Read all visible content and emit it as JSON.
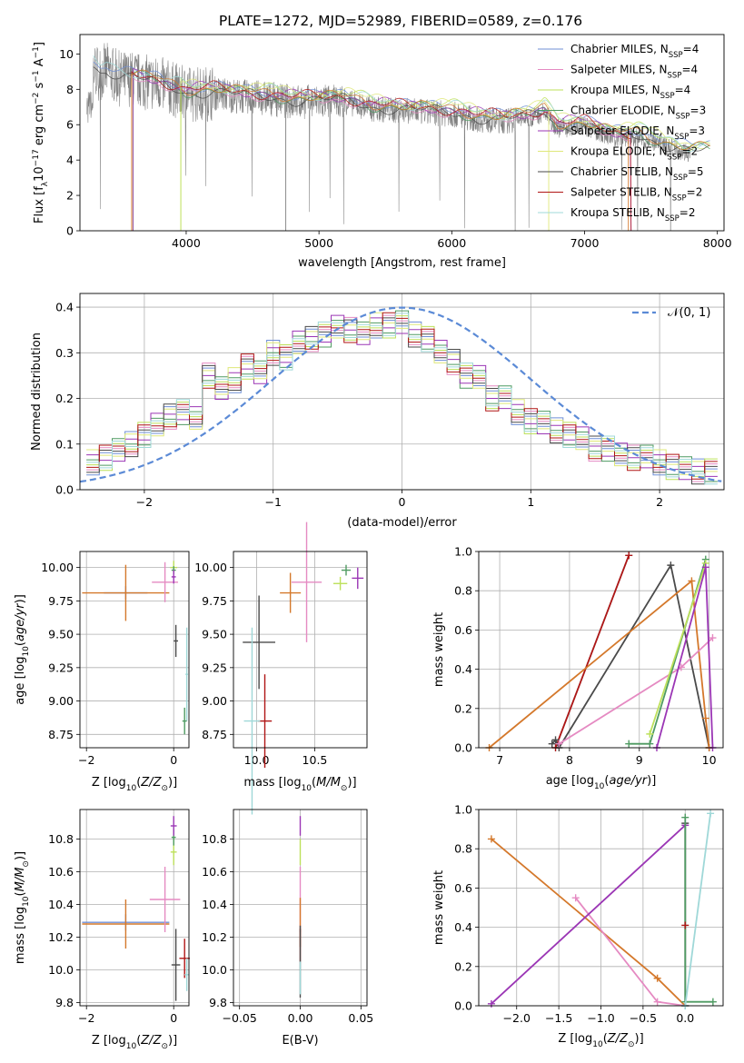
{
  "figure_title": "PLATE=1272, MJD=52989, FIBERID=0589, z=0.176",
  "series_colors": {
    "chabrier_miles": "#6f8fd6",
    "salpeter_miles": "#e58ac2",
    "kroupa_miles": "#bde05a",
    "chabrier_elodie": "#4f9b62",
    "salpeter_elodie": "#9b36b5",
    "kroupa_elodie": "#dfe87a",
    "chabrier_stelib": "#4a4a4a",
    "salpeter_stelib": "#b01515",
    "kroupa_stelib": "#9fd8d8",
    "combined_curve": "#d4782b",
    "data_spectrum": "#808080",
    "normal_curve": "#5b8ad6"
  },
  "chart_data": [
    {
      "id": "spectrum",
      "type": "line",
      "title": "PLATE=1272, MJD=52989, FIBERID=0589, z=0.176",
      "xlabel": "wavelength [Angstrom, rest frame]",
      "ylabel": "Flux [f_λ 10^-17 erg cm^-2 s^-1 A^-1]",
      "xlim": [
        3200,
        8050
      ],
      "ylim": [
        0,
        11.1
      ],
      "xticks": [
        4000,
        5000,
        6000,
        7000,
        8000
      ],
      "yticks": [
        0,
        2,
        4,
        6,
        8,
        10
      ],
      "grid": false,
      "legend_position": "top-right",
      "legend": [
        {
          "key": "chabrier_miles",
          "label": "Chabrier MILES, N",
          "sub": "SSP",
          "suffix": "=4"
        },
        {
          "key": "salpeter_miles",
          "label": "Salpeter MILES, N",
          "sub": "SSP",
          "suffix": "=4"
        },
        {
          "key": "kroupa_miles",
          "label": "Kroupa MILES, N",
          "sub": "SSP",
          "suffix": "=4"
        },
        {
          "key": "chabrier_elodie",
          "label": "Chabrier ELODIE, N",
          "sub": "SSP",
          "suffix": "=3"
        },
        {
          "key": "salpeter_elodie",
          "label": "Salpeter ELODIE, N",
          "sub": "SSP",
          "suffix": "=3"
        },
        {
          "key": "kroupa_elodie",
          "label": "Kroupa ELODIE, N",
          "sub": "SSP",
          "suffix": "=2"
        },
        {
          "key": "chabrier_stelib",
          "label": "Chabrier STELIB, N",
          "sub": "SSP",
          "suffix": "=5"
        },
        {
          "key": "salpeter_stelib",
          "label": "Salpeter STELIB, N",
          "sub": "SSP",
          "suffix": "=2"
        },
        {
          "key": "kroupa_stelib",
          "label": "Kroupa STELIB, N",
          "sub": "SSP",
          "suffix": "=2"
        }
      ],
      "data_range": [
        3250,
        7800
      ],
      "model_envelope": {
        "x": [
          3250,
          3300,
          3350,
          3400,
          3500,
          3600,
          3700,
          3800,
          3900,
          4000,
          4200,
          4400,
          4600,
          4800,
          5000,
          5200,
          5400,
          5600,
          5800,
          6000,
          6200,
          6400,
          6600,
          6700,
          6800,
          7000,
          7200,
          7400,
          7600,
          7800
        ],
        "y": [
          6.2,
          9.5,
          9.2,
          9.4,
          8.9,
          8.9,
          8.7,
          8.6,
          8.3,
          8.0,
          8.1,
          7.9,
          7.8,
          7.6,
          7.6,
          7.6,
          7.2,
          7.1,
          7.0,
          6.9,
          6.6,
          6.5,
          6.7,
          7.0,
          6.1,
          6.2,
          5.6,
          5.6,
          5.1,
          4.7
        ]
      }
    },
    {
      "id": "residuals",
      "type": "line",
      "xlabel": "(data-model)/error",
      "ylabel": "Normed distribution",
      "xlim": [
        -2.5,
        2.5
      ],
      "ylim": [
        0,
        0.43
      ],
      "xticks": [
        -2,
        -1,
        0,
        1,
        2
      ],
      "yticks": [
        0.0,
        0.1,
        0.2,
        0.3,
        0.4
      ],
      "grid": true,
      "legend_position": "top-right",
      "legend": [
        {
          "label": "𝒩(0, 1)",
          "style": "dashed"
        }
      ],
      "bins": [
        -2.4,
        -2.3,
        -2.2,
        -2.1,
        -2.0,
        -1.9,
        -1.8,
        -1.7,
        -1.6,
        -1.5,
        -1.4,
        -1.3,
        -1.2,
        -1.1,
        -1.0,
        -0.9,
        -0.8,
        -0.7,
        -0.6,
        -0.5,
        -0.4,
        -0.3,
        -0.2,
        -0.1,
        0.0,
        0.1,
        0.2,
        0.3,
        0.4,
        0.5,
        0.6,
        0.7,
        0.8,
        0.9,
        1.0,
        1.1,
        1.2,
        1.3,
        1.4,
        1.5,
        1.6,
        1.7,
        1.8,
        1.9,
        2.0,
        2.1,
        2.2,
        2.3,
        2.4
      ],
      "histogram_mean": [
        0.06,
        0.07,
        0.09,
        0.1,
        0.12,
        0.14,
        0.16,
        0.17,
        0.16,
        0.25,
        0.22,
        0.24,
        0.27,
        0.26,
        0.3,
        0.29,
        0.32,
        0.33,
        0.34,
        0.36,
        0.35,
        0.34,
        0.36,
        0.36,
        0.37,
        0.34,
        0.33,
        0.3,
        0.28,
        0.25,
        0.25,
        0.2,
        0.2,
        0.17,
        0.15,
        0.15,
        0.13,
        0.12,
        0.11,
        0.09,
        0.09,
        0.08,
        0.07,
        0.07,
        0.06,
        0.05,
        0.05,
        0.04,
        0.04
      ],
      "normal_curve": {
        "mu": 0,
        "sigma": 1
      }
    },
    {
      "id": "age_vs_Z",
      "type": "scatter",
      "xlabel": "Z [log10(Z/Z⊙)]",
      "ylabel": "age [log10(age/yr)]",
      "xlim": [
        -2.15,
        0.35
      ],
      "ylim": [
        8.65,
        10.12
      ],
      "xticks": [
        -2,
        0
      ],
      "yticks": [
        8.75,
        9.0,
        9.25,
        9.5,
        9.75,
        10.0
      ],
      "grid": true,
      "points": [
        {
          "key": "chabrier_miles",
          "x": -1.1,
          "y": 9.81,
          "xerr": 0.5,
          "yerr": 0.05
        },
        {
          "key": "combined_curve",
          "x": -1.1,
          "y": 9.81,
          "xerr": 1.0,
          "yerr": 0.21
        },
        {
          "key": "salpeter_miles",
          "x": -0.2,
          "y": 9.89,
          "xerr": 0.3,
          "yerr": 0.15
        },
        {
          "key": "kroupa_miles",
          "x": 0.0,
          "y": 10.0,
          "xerr": 0.08,
          "yerr": 0.05
        },
        {
          "key": "chabrier_elodie",
          "x": 0.0,
          "y": 9.98,
          "xerr": 0.05,
          "yerr": 0.03
        },
        {
          "key": "salpeter_elodie",
          "x": 0.0,
          "y": 9.93,
          "xerr": 0.05,
          "yerr": 0.05
        },
        {
          "key": "chabrier_stelib",
          "x": 0.05,
          "y": 9.45,
          "xerr": 0.05,
          "yerr": 0.12
        },
        {
          "key": "kroupa_stelib",
          "x": 0.3,
          "y": 9.2,
          "xerr": 0.03,
          "yerr": 0.35
        },
        {
          "key": "chabrier_elodie",
          "x": 0.25,
          "y": 8.85,
          "xerr": 0.05,
          "yerr": 0.1
        }
      ]
    },
    {
      "id": "age_vs_mass",
      "type": "scatter",
      "xlabel": "mass [log10(M/M⊙)]",
      "ylabel": "",
      "xlim": [
        9.8,
        10.95
      ],
      "ylim": [
        8.65,
        10.12
      ],
      "xticks": [
        10.0,
        10.5
      ],
      "yticks": [
        8.75,
        9.0,
        9.25,
        9.5,
        9.75,
        10.0
      ],
      "grid": true,
      "points": [
        {
          "key": "chabrier_stelib",
          "x": 10.02,
          "y": 9.44,
          "xerr": 0.14,
          "yerr": 0.35
        },
        {
          "key": "salpeter_stelib",
          "x": 10.07,
          "y": 8.85,
          "xerr": 0.06,
          "yerr": 0.35
        },
        {
          "key": "kroupa_stelib",
          "x": 9.96,
          "y": 8.85,
          "xerr": 0.07,
          "yerr": 0.7
        },
        {
          "key": "combined_curve",
          "x": 10.29,
          "y": 9.81,
          "xerr": 0.09,
          "yerr": 0.15
        },
        {
          "key": "salpeter_miles",
          "x": 10.43,
          "y": 9.89,
          "xerr": 0.13,
          "yerr": 0.45
        },
        {
          "key": "kroupa_miles",
          "x": 10.72,
          "y": 9.88,
          "xerr": 0.06,
          "yerr": 0.05
        },
        {
          "key": "chabrier_elodie",
          "x": 10.77,
          "y": 9.98,
          "xerr": 0.04,
          "yerr": 0.04
        },
        {
          "key": "salpeter_elodie",
          "x": 10.87,
          "y": 9.92,
          "xerr": 0.05,
          "yerr": 0.08
        }
      ]
    },
    {
      "id": "massweight_vs_age",
      "type": "line",
      "xlabel": "age [log10(age/yr)]",
      "ylabel": "mass weight",
      "xlim": [
        6.7,
        10.2
      ],
      "ylim": [
        0.0,
        1.0
      ],
      "xticks": [
        7,
        8,
        9,
        10
      ],
      "yticks": [
        0.0,
        0.2,
        0.4,
        0.6,
        0.8,
        1.0
      ],
      "grid": true,
      "series": [
        {
          "key": "kroupa_stelib",
          "x": [
            7.8,
            8.85
          ],
          "y": [
            0.0,
            0.98
          ]
        },
        {
          "key": "salpeter_stelib",
          "x": [
            7.8,
            8.85
          ],
          "y": [
            0.0,
            0.98
          ]
        },
        {
          "key": "chabrier_stelib",
          "x": [
            7.75,
            7.8,
            7.85,
            9.45,
            10.0
          ],
          "y": [
            0.02,
            0.04,
            0.0,
            0.93,
            0.0
          ]
        },
        {
          "key": "combined_curve",
          "x": [
            6.85,
            9.75,
            9.95,
            10.0
          ],
          "y": [
            0.0,
            0.85,
            0.15,
            0.0
          ]
        },
        {
          "key": "salpeter_miles",
          "x": [
            7.85,
            9.6,
            10.05
          ],
          "y": [
            0.02,
            0.41,
            0.56
          ]
        },
        {
          "key": "chabrier_elodie",
          "x": [
            8.85,
            9.15,
            9.95
          ],
          "y": [
            0.02,
            0.02,
            0.96
          ]
        },
        {
          "key": "kroupa_miles",
          "x": [
            9.15,
            9.95
          ],
          "y": [
            0.07,
            0.94
          ]
        },
        {
          "key": "salpeter_elodie",
          "x": [
            9.25,
            9.95,
            10.05
          ],
          "y": [
            0.0,
            0.92,
            0.0
          ]
        }
      ]
    },
    {
      "id": "mass_vs_Z",
      "type": "scatter",
      "xlabel": "Z [log10(Z/Z⊙)]",
      "ylabel": "mass [log10(M/M⊙)]",
      "xlim": [
        -2.15,
        0.35
      ],
      "ylim": [
        9.78,
        10.98
      ],
      "xticks": [
        -2,
        0
      ],
      "yticks": [
        9.8,
        10.0,
        10.2,
        10.4,
        10.6,
        10.8
      ],
      "grid": true,
      "points": [
        {
          "key": "chabrier_miles",
          "x": -1.1,
          "y": 10.29,
          "xerr": 1.0,
          "yerr": 0.05
        },
        {
          "key": "combined_curve",
          "x": -1.1,
          "y": 10.28,
          "xerr": 1.0,
          "yerr": 0.15
        },
        {
          "key": "salpeter_miles",
          "x": -0.2,
          "y": 10.43,
          "xerr": 0.35,
          "yerr": 0.2
        },
        {
          "key": "kroupa_miles",
          "x": 0.0,
          "y": 10.72,
          "xerr": 0.07,
          "yerr": 0.08
        },
        {
          "key": "chabrier_elodie",
          "x": 0.0,
          "y": 10.81,
          "xerr": 0.05,
          "yerr": 0.05
        },
        {
          "key": "salpeter_elodie",
          "x": 0.0,
          "y": 10.88,
          "xerr": 0.07,
          "yerr": 0.06
        },
        {
          "key": "chabrier_stelib",
          "x": 0.05,
          "y": 10.03,
          "xerr": 0.1,
          "yerr": 0.22
        },
        {
          "key": "salpeter_stelib",
          "x": 0.25,
          "y": 10.07,
          "xerr": 0.12,
          "yerr": 0.12
        },
        {
          "key": "kroupa_stelib",
          "x": 0.3,
          "y": 9.97,
          "xerr": 0.05,
          "yerr": 0.1
        }
      ]
    },
    {
      "id": "mass_vs_ebv",
      "type": "scatter",
      "xlabel": "E(B-V)",
      "ylabel": "",
      "xlim": [
        -0.055,
        0.055
      ],
      "ylim": [
        9.78,
        10.98
      ],
      "xticks": [
        -0.05,
        0.0,
        0.05
      ],
      "yticks": [
        9.8,
        10.0,
        10.2,
        10.4,
        10.6,
        10.8
      ],
      "grid": true,
      "points": [
        {
          "key": "salpeter_elodie",
          "x": 0.0,
          "y": 10.88,
          "xerr": 0.0,
          "yerr": 0.06
        },
        {
          "key": "kroupa_miles",
          "x": 0.0,
          "y": 10.72,
          "xerr": 0.0,
          "yerr": 0.08
        },
        {
          "key": "salpeter_miles",
          "x": 0.0,
          "y": 10.43,
          "xerr": 0.0,
          "yerr": 0.2
        },
        {
          "key": "combined_curve",
          "x": 0.0,
          "y": 10.29,
          "xerr": 0.0,
          "yerr": 0.15
        },
        {
          "key": "salpeter_stelib",
          "x": 0.0,
          "y": 10.15,
          "xerr": 0.0,
          "yerr": 0.1
        },
        {
          "key": "chabrier_stelib",
          "x": 0.0,
          "y": 10.05,
          "xerr": 0.0,
          "yerr": 0.22
        },
        {
          "key": "kroupa_stelib",
          "x": 0.0,
          "y": 9.95,
          "xerr": 0.0,
          "yerr": 0.1
        }
      ]
    },
    {
      "id": "massweight_vs_Z",
      "type": "line",
      "xlabel": "Z [log10(Z/Z⊙)]",
      "ylabel": "mass weight",
      "xlim": [
        -2.45,
        0.45
      ],
      "ylim": [
        0.0,
        1.0
      ],
      "xticks": [
        -2.0,
        -1.5,
        -1.0,
        -0.5,
        0.0
      ],
      "yticks": [
        0.0,
        0.2,
        0.4,
        0.6,
        0.8,
        1.0
      ],
      "grid": true,
      "series": [
        {
          "key": "combined_curve",
          "x": [
            -2.3,
            -0.33,
            0.0
          ],
          "y": [
            0.85,
            0.14,
            0.0
          ]
        },
        {
          "key": "salpeter_miles",
          "x": [
            -1.3,
            -0.33,
            0.0
          ],
          "y": [
            0.55,
            0.02,
            0.0
          ]
        },
        {
          "key": "salpeter_elodie",
          "x": [
            -2.3,
            0.0
          ],
          "y": [
            0.01,
            0.92
          ]
        },
        {
          "key": "chabrier_stelib",
          "x": [
            0.0,
            0.0
          ],
          "y": [
            0.0,
            0.93
          ]
        },
        {
          "key": "chabrier_elodie",
          "x": [
            0.0,
            0.0,
            0.33
          ],
          "y": [
            0.96,
            0.02,
            0.02
          ]
        },
        {
          "key": "kroupa_stelib",
          "x": [
            0.0,
            0.3
          ],
          "y": [
            0.0,
            0.98
          ]
        },
        {
          "key": "salpeter_stelib",
          "x": [
            0.0
          ],
          "y": [
            0.41
          ]
        }
      ]
    }
  ]
}
